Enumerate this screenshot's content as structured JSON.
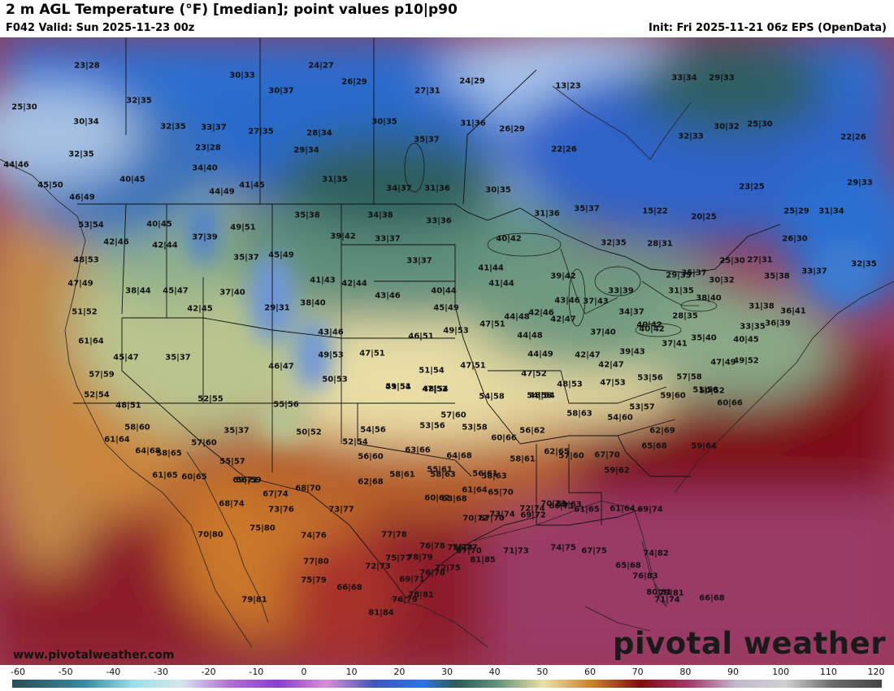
{
  "header": {
    "title": "2 m AGL Temperature (°F) [median]; point values p10|p90",
    "valid": "F042 Valid: Sun 2025-11-23 00z",
    "init": "Init: Fri 2025-11-21 06z EPS (OpenData)"
  },
  "branding": {
    "site": "www.pivotalweather.com",
    "logo": "pivotal weather"
  },
  "colorbar": {
    "ticks": [
      "-60",
      "-50",
      "-40",
      "-30",
      "-20",
      "-10",
      "0",
      "10",
      "20",
      "30",
      "40",
      "50",
      "60",
      "70",
      "80",
      "90",
      "100",
      "110",
      "120"
    ],
    "stops": [
      {
        "v": -60,
        "c": "#2a4d55"
      },
      {
        "v": -45,
        "c": "#3c8aa0"
      },
      {
        "v": -35,
        "c": "#9adfe8"
      },
      {
        "v": -25,
        "c": "#d7e6ec"
      },
      {
        "v": -15,
        "c": "#b26fd4"
      },
      {
        "v": -5,
        "c": "#8a3fc9"
      },
      {
        "v": 5,
        "c": "#d98fd6"
      },
      {
        "v": 15,
        "c": "#3f57b5"
      },
      {
        "v": 25,
        "c": "#2c76de"
      },
      {
        "v": 32,
        "c": "#2d5b57"
      },
      {
        "v": 40,
        "c": "#5f8f7a"
      },
      {
        "v": 50,
        "c": "#e9e1a6"
      },
      {
        "v": 60,
        "c": "#c9812f"
      },
      {
        "v": 70,
        "c": "#7a1010"
      },
      {
        "v": 80,
        "c": "#a03a68"
      },
      {
        "v": 90,
        "c": "#c4bacf"
      },
      {
        "v": 100,
        "c": "#d0d0d0"
      },
      {
        "v": 110,
        "c": "#6a6a6a"
      },
      {
        "v": 120,
        "c": "#444444"
      }
    ]
  },
  "point_values": [
    "23|28",
    "30|33",
    "24|27",
    "26|29",
    "27|31",
    "24|29",
    "13|23",
    "33|34",
    "29|33",
    "25|30",
    "32|35",
    "30|34",
    "30|37",
    "32|35",
    "33|37",
    "27|35",
    "28|34",
    "30|35",
    "31|36",
    "26|29",
    "35|37",
    "32|33",
    "30|32",
    "25|30",
    "22|26",
    "29|34",
    "22|26",
    "23|28",
    "32|35",
    "44|46",
    "40|45",
    "34|40",
    "44|49",
    "41|45",
    "31|35",
    "34|37",
    "31|36",
    "30|35",
    "23|25",
    "29|33",
    "45|50",
    "46|49",
    "35|38",
    "34|38",
    "33|36",
    "31|36",
    "35|37",
    "15|22",
    "20|25",
    "25|29",
    "31|34",
    "53|54",
    "40|45",
    "37|39",
    "49|51",
    "39|42",
    "33|37",
    "40|42",
    "28|31",
    "26|30",
    "42|46",
    "42|44",
    "32|35",
    "48|53",
    "35|37",
    "45|49",
    "33|37",
    "41|44",
    "25|30",
    "27|31",
    "29|35",
    "32|35",
    "47|49",
    "38|44",
    "45|47",
    "37|40",
    "41|43",
    "42|44",
    "39|42",
    "41|44",
    "35|37",
    "30|32",
    "35|38",
    "33|37",
    "51|52",
    "42|45",
    "29|31",
    "38|40",
    "43|46",
    "40|44",
    "43|46",
    "37|43",
    "33|39",
    "31|35",
    "38|40",
    "31|38",
    "36|41",
    "45|49",
    "47|51",
    "44|48",
    "42|46",
    "34|37",
    "28|35",
    "33|35",
    "36|39",
    "40|42",
    "49|53",
    "42|47",
    "46|51",
    "44|48",
    "37|40",
    "40|42",
    "35|40",
    "61|64",
    "45|47",
    "35|37",
    "43|46",
    "47|51",
    "39|43",
    "37|41",
    "40|45",
    "49|53",
    "51|54",
    "44|49",
    "42|47",
    "47|49",
    "49|52",
    "46|47",
    "50|53",
    "47|51",
    "42|47",
    "57|59",
    "47|52",
    "51|54",
    "47|52",
    "48|54",
    "48|53",
    "47|53",
    "53|56",
    "57|58",
    "50|52",
    "52|54",
    "49|51",
    "48|54",
    "54|58",
    "54|58",
    "53|57",
    "59|60",
    "51|56",
    "48|51",
    "52|55",
    "55|56",
    "57|60",
    "58|63",
    "54|60",
    "60|66",
    "58|60",
    "53|56",
    "53|58",
    "56|62",
    "62|69",
    "61|64",
    "35|37",
    "50|52",
    "54|56",
    "64|68",
    "57|60",
    "52|54",
    "60|66",
    "62|65",
    "67|70",
    "65|68",
    "59|64",
    "58|65",
    "55|57",
    "56|59",
    "56|60",
    "63|66",
    "64|68",
    "58|61",
    "57|60",
    "59|62",
    "56|61",
    "55|61",
    "58|63",
    "61|65",
    "60|65",
    "69|71",
    "67|74",
    "68|70",
    "62|68",
    "58|61",
    "58|63",
    "61|64",
    "63|68",
    "65|70",
    "70|73",
    "59|63",
    "61|65",
    "61|64",
    "69|74",
    "68|74",
    "73|76",
    "73|77",
    "60|62",
    "70|72",
    "73|74",
    "69|72",
    "66|71",
    "67|70",
    "72|74",
    "70|80",
    "75|80",
    "74|76",
    "77|78",
    "76|78",
    "76|77",
    "67|70",
    "71|73",
    "74|75",
    "67|75",
    "65|68",
    "74|82",
    "76|83",
    "77|80",
    "72|73",
    "75|77",
    "75|79",
    "78|79",
    "76|78",
    "72|75",
    "81|85",
    "75|78",
    "76|79",
    "78|81",
    "69|71",
    "66|68",
    "81|84",
    "80|81",
    "71|74",
    "79|81",
    "66|68",
    "79|81"
  ]
}
